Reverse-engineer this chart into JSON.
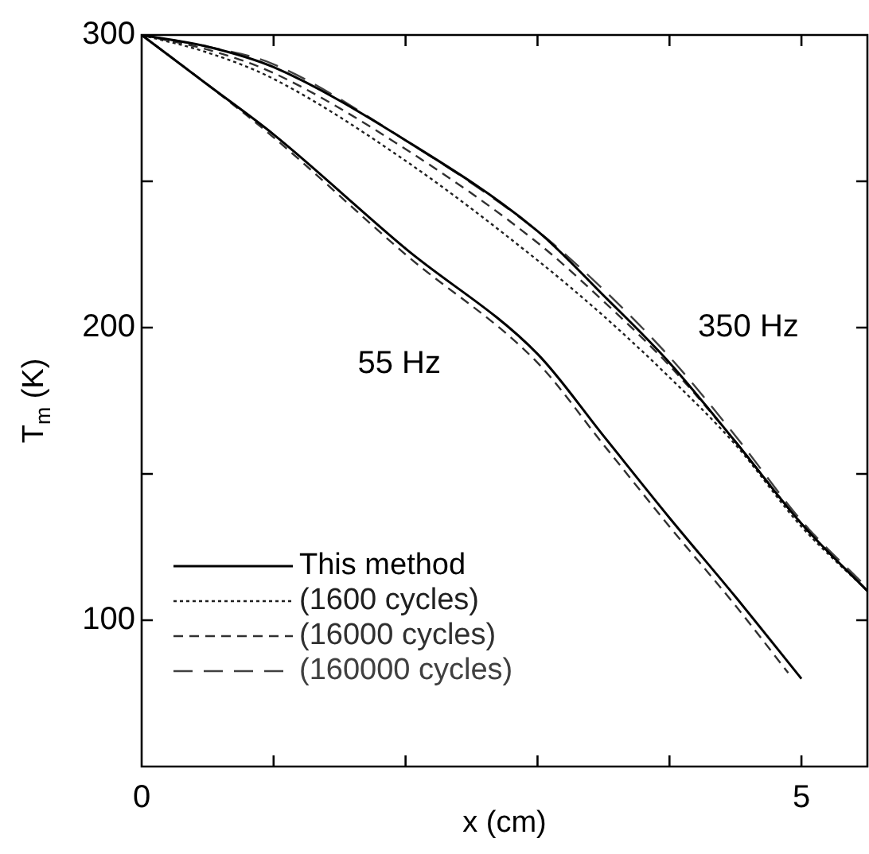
{
  "chart_data": {
    "type": "line",
    "xlabel": "x (cm)",
    "ylabel": "T$_{m}$ (K)",
    "xlim": [
      0,
      5.5
    ],
    "ylim": [
      50,
      300
    ],
    "xticks": [
      0,
      {
        "value": 1,
        "label": null
      },
      {
        "value": 2,
        "label": null
      },
      {
        "value": 3,
        "label": null
      },
      {
        "value": 4,
        "label": null
      },
      5
    ],
    "yticks": [
      {
        "value": 50,
        "label": null
      },
      100,
      {
        "value": 150,
        "label": null
      },
      200,
      {
        "value": 250,
        "label": null
      },
      300
    ],
    "grid": false,
    "legend": "bottom left",
    "marker": "none",
    "annotations": [
      "55 Hz",
      "350 Hz"
    ],
    "series": [
      {
        "name": "This method",
        "color": "#000000",
        "line_style": "solid",
        "x": [
          0,
          0.5,
          1,
          2,
          3,
          3.5,
          4,
          4.5,
          5,
          null,
          0,
          0.5,
          1,
          2,
          3,
          3.5,
          4,
          4.5,
          5,
          5.5
        ],
        "values": [
          300,
          283,
          266,
          227,
          191,
          163,
          135,
          108,
          80,
          null,
          300,
          296,
          289,
          264,
          233,
          211,
          188,
          161,
          133,
          110
        ]
      },
      {
        "name": "(1600 cycles)",
        "color": "#202020",
        "line_style": "dotted",
        "x": [
          0,
          0.5,
          1,
          2,
          3,
          3.5,
          4,
          4.5,
          5,
          5.5
        ],
        "values": [
          300,
          294,
          285,
          257,
          223,
          204,
          183,
          160,
          132,
          110
        ]
      },
      {
        "name": "(16000 cycles)",
        "color": "#303030",
        "line_style": "dashed",
        "x": [
          0,
          0.5,
          1,
          2,
          3,
          3.5,
          4,
          4.5,
          4.9,
          null,
          0,
          0.5,
          1,
          2,
          3,
          3.5,
          4,
          4.5,
          5,
          5.5
        ],
        "values": [
          300,
          283,
          265,
          225,
          188,
          160,
          132,
          105,
          82,
          null,
          300,
          295,
          287,
          261,
          229,
          209,
          187,
          161,
          133,
          110
        ]
      },
      {
        "name": "(160000 cycles)",
        "color": "#404040",
        "line_style": "dashed",
        "x": [
          0,
          0.5,
          1,
          2,
          3,
          3.5,
          4,
          4.5,
          5,
          5.5
        ],
        "values": [
          300,
          296,
          290,
          264,
          233,
          213,
          190,
          163,
          134,
          111
        ]
      }
    ]
  }
}
